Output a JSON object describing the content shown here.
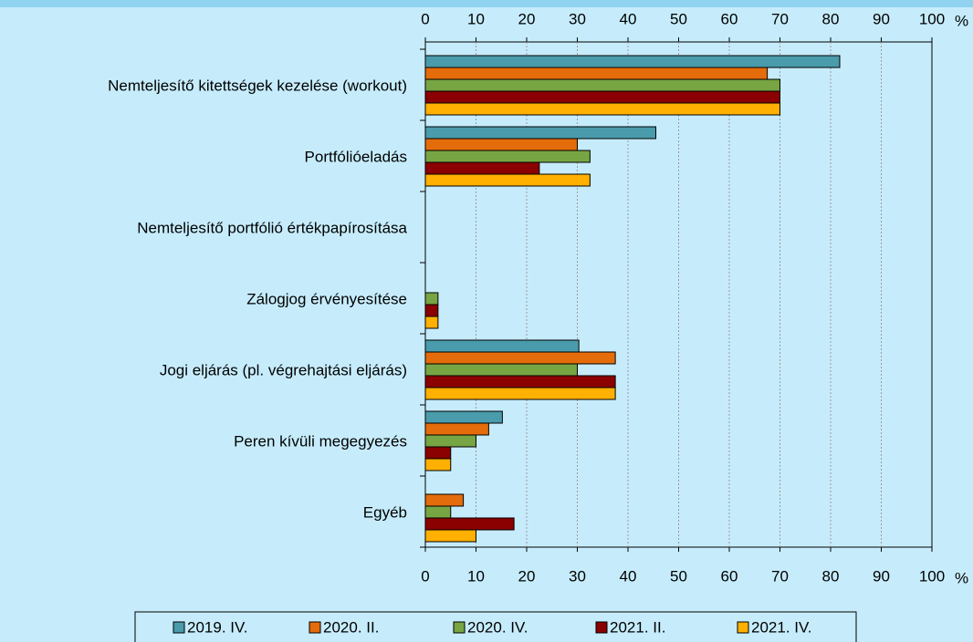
{
  "chart_data": {
    "type": "bar",
    "orientation": "horizontal",
    "x_unit": "%",
    "categories": [
      "Nemteljesítő kitettségek kezelése (workout)",
      "Portfólióeladás",
      "Nemteljesítő portfólió értékpapírosítása",
      "Zálogjog érvényesítése",
      "Jogi eljárás (pl. végrehajtási eljárás)",
      "Peren kívüli megegyezés",
      "Egyéb"
    ],
    "series": [
      {
        "name": "2019. IV.",
        "color": "#4a9bab",
        "values": [
          81.8,
          45.5,
          0,
          0,
          30.3,
          15.2,
          0
        ]
      },
      {
        "name": "2020. II.",
        "color": "#e46c0a",
        "values": [
          67.5,
          30,
          0,
          0,
          37.5,
          12.5,
          7.5
        ]
      },
      {
        "name": "2020. IV.",
        "color": "#77a543",
        "values": [
          70,
          32.5,
          0,
          2.5,
          30,
          10,
          5
        ]
      },
      {
        "name": "2021. II.",
        "color": "#8b0000",
        "values": [
          70,
          22.5,
          0,
          2.5,
          37.5,
          5,
          17.5
        ]
      },
      {
        "name": "2021. IV.",
        "color": "#ffb000",
        "values": [
          70,
          32.5,
          0,
          2.5,
          37.5,
          5,
          10
        ]
      }
    ],
    "xlim": [
      0,
      100
    ],
    "xticks": [
      0,
      10,
      20,
      30,
      40,
      50,
      60,
      70,
      80,
      90,
      100
    ],
    "grid": true
  }
}
